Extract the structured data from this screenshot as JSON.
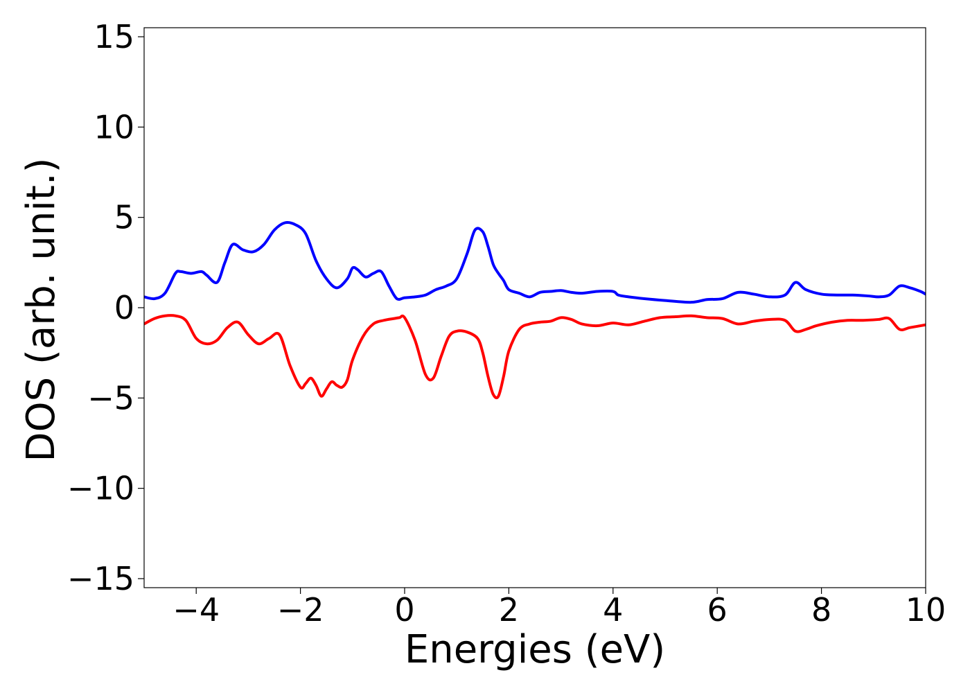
{
  "chart_data": {
    "type": "line",
    "title": "",
    "xlabel": "Energies (eV)",
    "ylabel": "DOS (arb. unit.)",
    "xlim": [
      -5,
      10
    ],
    "ylim": [
      -15.5,
      15.5
    ],
    "xticks": [
      -4,
      -2,
      0,
      2,
      4,
      6,
      8,
      10
    ],
    "xtick_labels": [
      "−4",
      "−2",
      "0",
      "2",
      "4",
      "6",
      "8",
      "10"
    ],
    "yticks": [
      -15,
      -10,
      -5,
      0,
      5,
      10,
      15
    ],
    "ytick_labels": [
      "−15",
      "−10",
      "−5",
      "0",
      "5",
      "10",
      "15"
    ],
    "grid": false,
    "series": [
      {
        "color": "#0000ff",
        "x": [
          -5.0,
          -4.8,
          -4.6,
          -4.4,
          -4.3,
          -4.1,
          -3.9,
          -3.8,
          -3.6,
          -3.45,
          -3.3,
          -3.1,
          -2.9,
          -2.7,
          -2.5,
          -2.3,
          -2.1,
          -1.9,
          -1.7,
          -1.5,
          -1.3,
          -1.1,
          -1.0,
          -0.9,
          -0.75,
          -0.6,
          -0.45,
          -0.3,
          -0.15,
          0.0,
          0.2,
          0.4,
          0.6,
          0.8,
          1.0,
          1.2,
          1.35,
          1.5,
          1.6,
          1.7,
          1.8,
          1.9,
          2.0,
          2.2,
          2.4,
          2.6,
          2.8,
          3.0,
          3.2,
          3.4,
          3.7,
          4.0,
          4.1,
          4.3,
          4.6,
          5.0,
          5.5,
          5.8,
          6.1,
          6.4,
          6.7,
          7.0,
          7.3,
          7.5,
          7.7,
          8.0,
          8.3,
          8.6,
          8.9,
          9.1,
          9.3,
          9.5,
          9.7,
          9.9,
          10.0
        ],
        "y": [
          0.6,
          0.5,
          0.8,
          1.9,
          2.0,
          1.9,
          2.0,
          1.8,
          1.4,
          2.5,
          3.5,
          3.2,
          3.1,
          3.5,
          4.3,
          4.7,
          4.6,
          4.1,
          2.6,
          1.6,
          1.1,
          1.6,
          2.2,
          2.1,
          1.7,
          1.9,
          2.0,
          1.2,
          0.5,
          0.55,
          0.6,
          0.7,
          1.0,
          1.2,
          1.6,
          3.0,
          4.3,
          4.2,
          3.4,
          2.4,
          1.9,
          1.5,
          1.0,
          0.8,
          0.6,
          0.85,
          0.9,
          0.95,
          0.85,
          0.8,
          0.9,
          0.9,
          0.7,
          0.6,
          0.5,
          0.4,
          0.3,
          0.45,
          0.5,
          0.85,
          0.75,
          0.6,
          0.7,
          1.4,
          1.0,
          0.75,
          0.7,
          0.7,
          0.65,
          0.6,
          0.7,
          1.2,
          1.1,
          0.9,
          0.75
        ]
      },
      {
        "color": "#ff0000",
        "x": [
          -5.0,
          -4.8,
          -4.6,
          -4.4,
          -4.2,
          -4.0,
          -3.8,
          -3.6,
          -3.4,
          -3.2,
          -3.0,
          -2.8,
          -2.6,
          -2.4,
          -2.2,
          -2.0,
          -1.9,
          -1.8,
          -1.7,
          -1.6,
          -1.5,
          -1.4,
          -1.3,
          -1.2,
          -1.1,
          -1.0,
          -0.8,
          -0.6,
          -0.4,
          -0.2,
          -0.1,
          0.0,
          0.2,
          0.4,
          0.55,
          0.7,
          0.85,
          1.0,
          1.2,
          1.4,
          1.5,
          1.6,
          1.7,
          1.8,
          1.9,
          2.0,
          2.2,
          2.4,
          2.6,
          2.8,
          3.0,
          3.2,
          3.4,
          3.7,
          4.0,
          4.3,
          4.6,
          4.9,
          5.2,
          5.5,
          5.8,
          6.1,
          6.4,
          6.7,
          7.0,
          7.3,
          7.5,
          7.7,
          7.9,
          8.2,
          8.5,
          8.8,
          9.1,
          9.3,
          9.5,
          9.7,
          10.0
        ],
        "y": [
          -0.9,
          -0.6,
          -0.45,
          -0.45,
          -0.7,
          -1.7,
          -2.0,
          -1.8,
          -1.1,
          -0.8,
          -1.5,
          -2.0,
          -1.7,
          -1.5,
          -3.2,
          -4.4,
          -4.2,
          -3.9,
          -4.3,
          -4.9,
          -4.5,
          -4.1,
          -4.3,
          -4.4,
          -4.0,
          -2.9,
          -1.6,
          -0.9,
          -0.7,
          -0.6,
          -0.55,
          -0.55,
          -1.8,
          -3.7,
          -3.9,
          -2.7,
          -1.6,
          -1.3,
          -1.35,
          -1.7,
          -2.5,
          -3.8,
          -4.8,
          -4.9,
          -3.8,
          -2.4,
          -1.2,
          -0.9,
          -0.8,
          -0.75,
          -0.55,
          -0.65,
          -0.9,
          -1.0,
          -0.85,
          -0.95,
          -0.75,
          -0.55,
          -0.5,
          -0.45,
          -0.55,
          -0.6,
          -0.9,
          -0.75,
          -0.65,
          -0.7,
          -1.3,
          -1.2,
          -1.0,
          -0.8,
          -0.7,
          -0.7,
          -0.65,
          -0.6,
          -1.2,
          -1.1,
          -0.95
        ]
      }
    ]
  }
}
